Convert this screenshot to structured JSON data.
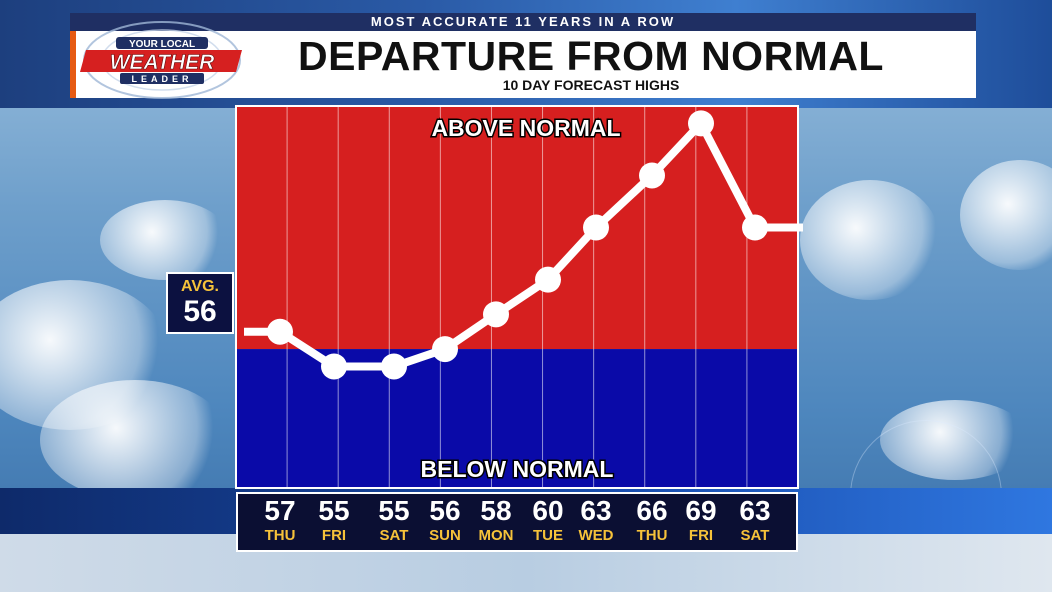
{
  "header": {
    "strap": "MOST ACCURATE 11 YEARS IN A ROW",
    "title": "DEPARTURE FROM NORMAL",
    "subtitle": "10 DAY FORECAST HIGHS"
  },
  "logo": {
    "line1": "YOUR LOCAL",
    "line2": "WEATHER",
    "line3": "LEADER"
  },
  "avg": {
    "label": "AVG.",
    "value": "56"
  },
  "bands": {
    "above": "ABOVE NORMAL",
    "below": "BELOW NORMAL"
  },
  "colors": {
    "above": "#d61f1f",
    "below": "#0a0aa8",
    "line": "#ffffff",
    "day_text": "#f6c23a"
  },
  "chart_data": {
    "type": "line",
    "title": "DEPARTURE FROM NORMAL",
    "subtitle": "10 DAY FORECAST HIGHS",
    "normal": 56,
    "categories": [
      "THU",
      "FRI",
      "SAT",
      "SUN",
      "MON",
      "TUE",
      "WED",
      "THU",
      "FRI",
      "SAT"
    ],
    "values": [
      57,
      55,
      55,
      56,
      58,
      60,
      63,
      66,
      69,
      63
    ],
    "ylim": [
      48,
      70
    ],
    "grid": true
  }
}
